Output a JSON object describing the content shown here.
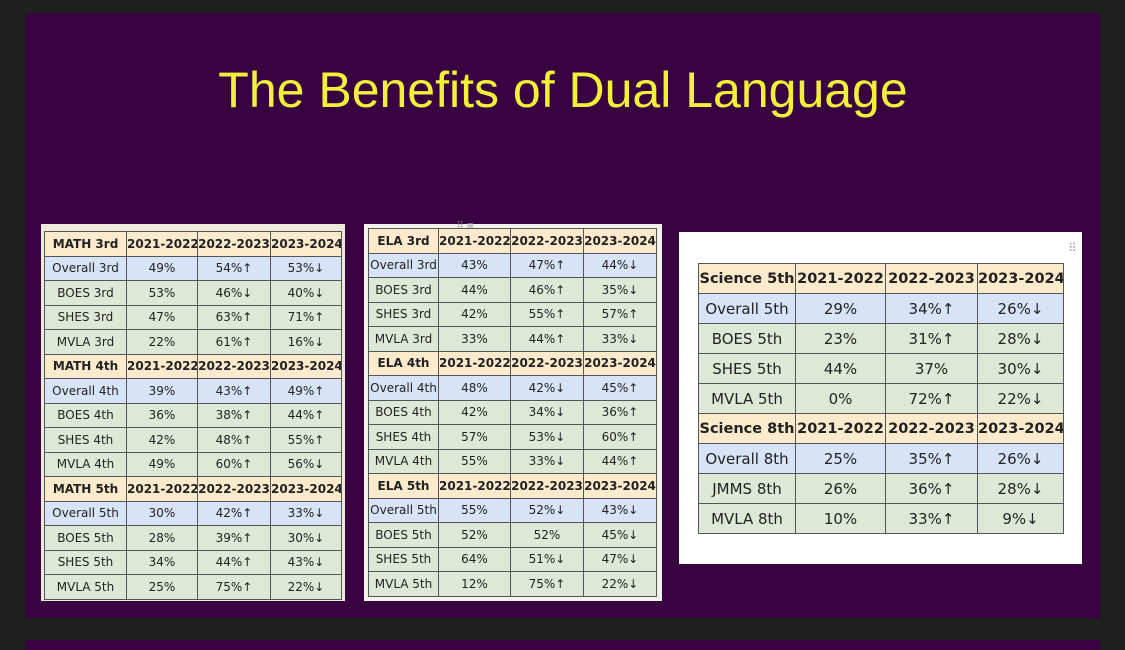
{
  "slide": {
    "title": "The Benefits of Dual Language"
  },
  "colors": {
    "slide_bg": "#380340",
    "title": "#f3f03a",
    "header_cell": "#fbeacb",
    "overall_cell": "#d7e3f7",
    "school_cell": "#dde9d6"
  },
  "tables": {
    "math": {
      "rows": [
        [
          "MATH 3rd",
          "2021-2022",
          "2022-2023",
          "2023-2024"
        ],
        [
          "Overall 3rd",
          "49%",
          "54%↑",
          "53%↓"
        ],
        [
          "BOES 3rd",
          "53%",
          "46%↓",
          "40%↓"
        ],
        [
          "SHES 3rd",
          "47%",
          "63%↑",
          "71%↑"
        ],
        [
          "MVLA 3rd",
          "22%",
          "61%↑",
          "16%↓"
        ],
        [
          "MATH 4th",
          "2021-2022",
          "2022-2023",
          "2023-2024"
        ],
        [
          "Overall 4th",
          "39%",
          "43%↑",
          "49%↑"
        ],
        [
          "BOES 4th",
          "36%",
          "38%↑",
          "44%↑"
        ],
        [
          "SHES 4th",
          "42%",
          "48%↑",
          "55%↑"
        ],
        [
          "MVLA 4th",
          "49%",
          "60%↑",
          "56%↓"
        ],
        [
          "MATH 5th",
          "2021-2022",
          "2022-2023",
          "2023-2024"
        ],
        [
          "Overall 5th",
          "30%",
          "42%↑",
          "33%↓"
        ],
        [
          "BOES 5th",
          "28%",
          "39%↑",
          "30%↓"
        ],
        [
          "SHES 5th",
          "34%",
          "44%↑",
          "43%↓"
        ],
        [
          "MVLA 5th",
          "25%",
          "75%↑",
          "22%↓"
        ]
      ]
    },
    "ela": {
      "rows": [
        [
          "ELA 3rd",
          "2021-2022",
          "2022-2023",
          "2023-2024"
        ],
        [
          "Overall 3rd",
          "43%",
          "47%↑",
          "44%↓"
        ],
        [
          "BOES 3rd",
          "44%",
          "46%↑",
          "35%↓"
        ],
        [
          "SHES 3rd",
          "42%",
          "55%↑",
          "57%↑"
        ],
        [
          "MVLA 3rd",
          "33%",
          "44%↑",
          "33%↓"
        ],
        [
          "ELA 4th",
          "2021-2022",
          "2022-2023",
          "2023-2024"
        ],
        [
          "Overall 4th",
          "48%",
          "42%↓",
          "45%↑"
        ],
        [
          "BOES 4th",
          "42%",
          "34%↓",
          "36%↑"
        ],
        [
          "SHES 4th",
          "57%",
          "53%↓",
          "60%↑"
        ],
        [
          "MVLA 4th",
          "55%",
          "33%↓",
          "44%↑"
        ],
        [
          "ELA 5th",
          "2021-2022",
          "2022-2023",
          "2023-2024"
        ],
        [
          "Overall 5th",
          "55%",
          "52%↓",
          "43%↓"
        ],
        [
          "BOES 5th",
          "52%",
          "52%",
          "45%↓"
        ],
        [
          "SHES 5th",
          "64%",
          "51%↓",
          "47%↓"
        ],
        [
          "MVLA 5th",
          "12%",
          "75%↑",
          "22%↓"
        ]
      ]
    },
    "science": {
      "rows": [
        [
          "Science 5th",
          "2021-2022",
          "2022-2023",
          "2023-2024"
        ],
        [
          "Overall 5th",
          "29%",
          "34%↑",
          "26%↓"
        ],
        [
          "BOES 5th",
          "23%",
          "31%↑",
          "28%↓"
        ],
        [
          "SHES 5th",
          "44%",
          "37%",
          "30%↓"
        ],
        [
          "MVLA 5th",
          "0%",
          "72%↑",
          "22%↓"
        ],
        [
          "Science 8th",
          "2021-2022",
          "2022-2023",
          "2023-2024"
        ],
        [
          "Overall 8th",
          "25%",
          "35%↑",
          "26%↓"
        ],
        [
          "JMMS 8th",
          "26%",
          "36%↑",
          "28%↓"
        ],
        [
          "MVLA 8th",
          "10%",
          "33%↑",
          "9%↓"
        ]
      ]
    }
  }
}
